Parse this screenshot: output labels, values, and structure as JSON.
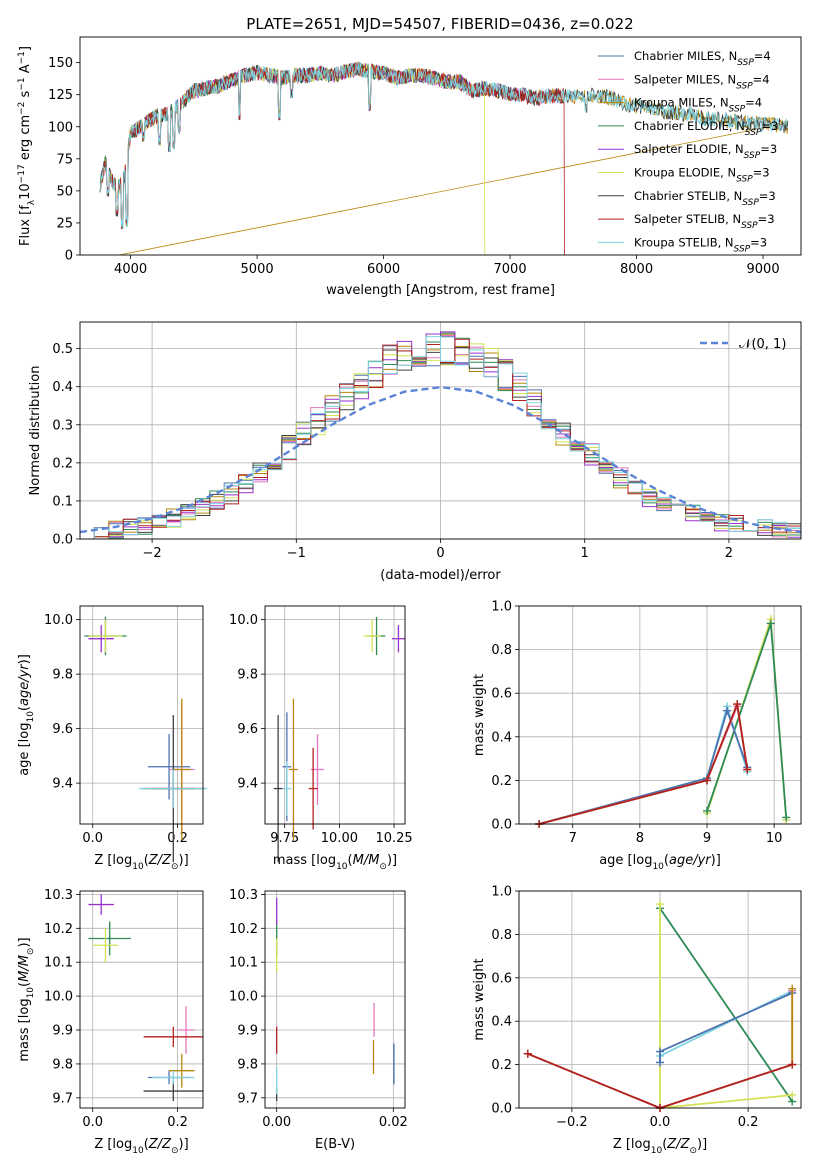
{
  "figure_title": "PLATE=2651, MJD=54507, FIBERID=0436, z=0.022",
  "colors": {
    "Chabrier MILES": "#4c72b0",
    "Salpeter MILES": "#e377c2",
    "Kroupa MILES": "#b8860b",
    "Chabrier ELODIE": "#2e8b57",
    "Salpeter ELODIE": "#9932cc",
    "Kroupa ELODIE": "#d4e157",
    "Chabrier STELIB": "#404040",
    "Salpeter STELIB": "#b22222",
    "Kroupa STELIB": "#7fd3e0",
    "orange": "#dd7733",
    "gauss": "#5b84d6"
  },
  "chart_data": [
    {
      "id": "spectrum",
      "type": "line",
      "title": "PLATE=2651, MJD=54507, FIBERID=0436, z=0.022",
      "xlabel": "wavelength [Angstrom, rest frame]",
      "ylabel": "Flux [f_λ10^-17 erg cm^-2 s^-1 A^-1]",
      "xlim": [
        3600,
        9300
      ],
      "ylim": [
        0,
        170
      ],
      "xticks": [
        4000,
        5000,
        6000,
        7000,
        8000,
        9000
      ],
      "yticks": [
        0,
        25,
        50,
        75,
        100,
        125,
        150
      ],
      "legend_position": "top-right",
      "legend": [
        {
          "label": "Chabrier MILES, N",
          "sub": "SSP",
          "tail": "=4"
        },
        {
          "label": "Salpeter MILES, N",
          "sub": "SSP",
          "tail": "=4"
        },
        {
          "label": "Kroupa MILES, N",
          "sub": "SSP",
          "tail": "=4"
        },
        {
          "label": "Chabrier ELODIE, N",
          "sub": "SSP",
          "tail": "=3"
        },
        {
          "label": "Salpeter ELODIE, N",
          "sub": "SSP",
          "tail": "=3"
        },
        {
          "label": "Kroupa ELODIE, N",
          "sub": "SSP",
          "tail": "=3"
        },
        {
          "label": "Chabrier STELIB, N",
          "sub": "SSP",
          "tail": "=3"
        },
        {
          "label": "Salpeter STELIB, N",
          "sub": "SSP",
          "tail": "=3"
        },
        {
          "label": "Kroupa STELIB, N",
          "sub": "SSP",
          "tail": "=3"
        }
      ],
      "continuum": [
        [
          3760,
          55
        ],
        [
          3800,
          72
        ],
        [
          3850,
          58
        ],
        [
          3900,
          52
        ],
        [
          3950,
          60
        ],
        [
          4000,
          95
        ],
        [
          4100,
          102
        ],
        [
          4200,
          108
        ],
        [
          4300,
          110
        ],
        [
          4400,
          118
        ],
        [
          4500,
          128
        ],
        [
          4600,
          130
        ],
        [
          4700,
          132
        ],
        [
          4800,
          136
        ],
        [
          4900,
          140
        ],
        [
          5000,
          142
        ],
        [
          5100,
          140
        ],
        [
          5200,
          138
        ],
        [
          5300,
          140
        ],
        [
          5400,
          140
        ],
        [
          5500,
          142
        ],
        [
          5600,
          140
        ],
        [
          5700,
          143
        ],
        [
          5800,
          145
        ],
        [
          5900,
          143
        ],
        [
          6000,
          142
        ],
        [
          6100,
          138
        ],
        [
          6200,
          140
        ],
        [
          6300,
          140
        ],
        [
          6400,
          138
        ],
        [
          6500,
          135
        ],
        [
          6600,
          135
        ],
        [
          6700,
          128
        ],
        [
          6800,
          130
        ],
        [
          6900,
          128
        ],
        [
          7000,
          126
        ],
        [
          7100,
          125
        ],
        [
          7200,
          122
        ],
        [
          7300,
          124
        ],
        [
          7400,
          124
        ],
        [
          7500,
          123
        ],
        [
          7600,
          124
        ],
        [
          7700,
          125
        ],
        [
          7800,
          122
        ],
        [
          7900,
          118
        ],
        [
          8000,
          116
        ],
        [
          8100,
          115
        ],
        [
          8200,
          112
        ],
        [
          8300,
          111
        ],
        [
          8400,
          110
        ],
        [
          8500,
          107
        ],
        [
          8600,
          106
        ],
        [
          8700,
          105
        ],
        [
          8800,
          104
        ],
        [
          8900,
          103
        ],
        [
          9000,
          102
        ],
        [
          9100,
          102
        ],
        [
          9200,
          100
        ]
      ],
      "absorption_lines": [
        [
          3820,
          45
        ],
        [
          3890,
          30
        ],
        [
          3933,
          20
        ],
        [
          3968,
          22
        ],
        [
          4102,
          88
        ],
        [
          4227,
          85
        ],
        [
          4305,
          80
        ],
        [
          4340,
          82
        ],
        [
          4384,
          95
        ],
        [
          4861,
          105
        ],
        [
          5175,
          105
        ],
        [
          5270,
          122
        ],
        [
          5890,
          112
        ],
        [
          7600,
          110
        ],
        [
          8200,
          112
        ],
        [
          8540,
          100
        ],
        [
          8660,
          98
        ]
      ],
      "drops": [
        {
          "series": "Kroupa MILES",
          "x": 3910
        },
        {
          "series": "Kroupa ELODIE",
          "x": 6800
        },
        {
          "series": "Salpeter STELIB",
          "x": 7430
        }
      ]
    },
    {
      "id": "residuals",
      "type": "histogram",
      "xlabel": "(data-model)/error",
      "ylabel": "Normed distribution",
      "xlim": [
        -2.5,
        2.5
      ],
      "ylim": [
        0,
        0.57
      ],
      "xticks": [
        -2,
        -1,
        0,
        1,
        2
      ],
      "yticks": [
        0.0,
        0.1,
        0.2,
        0.3,
        0.4,
        0.5
      ],
      "grid": true,
      "legend_position": "top-right",
      "legend_gauss": "𝒩(0, 1)",
      "bin_width": 0.1,
      "gauss_x": [
        -2.5,
        -2.25,
        -2.0,
        -1.75,
        -1.5,
        -1.25,
        -1.0,
        -0.75,
        -0.5,
        -0.25,
        0.0,
        0.25,
        0.5,
        0.75,
        1.0,
        1.25,
        1.5,
        1.75,
        2.0,
        2.25,
        2.5
      ],
      "gauss_y": [
        0.018,
        0.032,
        0.054,
        0.086,
        0.13,
        0.183,
        0.242,
        0.301,
        0.352,
        0.387,
        0.399,
        0.387,
        0.352,
        0.301,
        0.242,
        0.183,
        0.13,
        0.086,
        0.054,
        0.032,
        0.018
      ],
      "hist_profile": [
        0.015,
        0.02,
        0.025,
        0.03,
        0.035,
        0.045,
        0.055,
        0.065,
        0.08,
        0.1,
        0.12,
        0.14,
        0.17,
        0.2,
        0.24,
        0.28,
        0.31,
        0.34,
        0.37,
        0.4,
        0.44,
        0.47,
        0.48,
        0.49,
        0.5,
        0.5,
        0.49,
        0.48,
        0.46,
        0.43,
        0.4,
        0.36,
        0.32,
        0.28,
        0.25,
        0.22,
        0.19,
        0.16,
        0.13,
        0.11,
        0.09,
        0.075,
        0.065,
        0.055,
        0.045,
        0.04,
        0.035,
        0.03,
        0.025,
        0.02
      ]
    },
    {
      "id": "age_vs_Z",
      "type": "scatter",
      "xlabel": "Z [log10(Z/Z⊙)]",
      "ylabel": "age  [log10(age/yr)]",
      "xlim": [
        -0.03,
        0.26
      ],
      "ylim": [
        9.25,
        10.05
      ],
      "xticks": [
        0.0,
        0.2
      ],
      "yticks": [
        9.4,
        9.6,
        9.8,
        10.0
      ],
      "grid": true,
      "points": [
        {
          "series": "Chabrier MILES",
          "x": 0.18,
          "y": 9.46,
          "xe": 0.05,
          "ye": 0.12
        },
        {
          "series": "Salpeter MILES",
          "x": 0.21,
          "y": 9.45,
          "xe": 0.03,
          "ye": 0.24
        },
        {
          "series": "Kroupa MILES",
          "x": 0.21,
          "y": 9.45,
          "xe": 0.02,
          "ye": 0.26
        },
        {
          "series": "Chabrier ELODIE",
          "x": 0.03,
          "y": 9.94,
          "xe": 0.05,
          "ye": 0.07
        },
        {
          "series": "Salpeter ELODIE",
          "x": 0.02,
          "y": 9.93,
          "xe": 0.03,
          "ye": 0.05
        },
        {
          "series": "Kroupa ELODIE",
          "x": 0.03,
          "y": 9.94,
          "xe": 0.04,
          "ye": 0.06
        },
        {
          "series": "Chabrier STELIB",
          "x": 0.19,
          "y": 9.38,
          "xe": 0.05,
          "ye": 0.27
        },
        {
          "series": "Salpeter STELIB",
          "x": 0.19,
          "y": 9.38,
          "xe": 0.07,
          "ye": 0.06
        },
        {
          "series": "Kroupa STELIB",
          "x": 0.19,
          "y": 9.38,
          "xe": 0.08,
          "ye": 0.07
        }
      ]
    },
    {
      "id": "age_vs_mass",
      "type": "scatter",
      "xlabel": "mass [log10(M/M⊙)]",
      "ylabel": "",
      "xlim": [
        9.66,
        10.3
      ],
      "ylim": [
        9.25,
        10.05
      ],
      "xticks": [
        9.75,
        10.0,
        10.25
      ],
      "yticks": [
        9.4,
        9.6,
        9.8,
        10.0
      ],
      "grid": true,
      "points": [
        {
          "series": "Chabrier MILES",
          "x": 9.76,
          "y": 9.46,
          "xe": 0.02,
          "ye": 0.2
        },
        {
          "series": "Salpeter MILES",
          "x": 9.9,
          "y": 9.45,
          "xe": 0.03,
          "ye": 0.13
        },
        {
          "series": "Kroupa MILES",
          "x": 9.79,
          "y": 9.45,
          "xe": 0.02,
          "ye": 0.26
        },
        {
          "series": "Chabrier ELODIE",
          "x": 10.17,
          "y": 9.94,
          "xe": 0.04,
          "ye": 0.07
        },
        {
          "series": "Salpeter ELODIE",
          "x": 10.27,
          "y": 9.93,
          "xe": 0.03,
          "ye": 0.05
        },
        {
          "series": "Kroupa ELODIE",
          "x": 10.15,
          "y": 9.94,
          "xe": 0.04,
          "ye": 0.06
        },
        {
          "series": "Chabrier STELIB",
          "x": 9.72,
          "y": 9.38,
          "xe": 0.02,
          "ye": 0.27
        },
        {
          "series": "Salpeter STELIB",
          "x": 9.88,
          "y": 9.38,
          "xe": 0.02,
          "ye": 0.15
        },
        {
          "series": "Kroupa STELIB",
          "x": 9.76,
          "y": 9.38,
          "xe": 0.02,
          "ye": 0.1
        }
      ]
    },
    {
      "id": "weight_vs_age",
      "type": "line",
      "xlabel": "age  [log10(age/yr)]",
      "ylabel": "mass weight",
      "xlim": [
        6.2,
        10.4
      ],
      "ylim": [
        0.0,
        1.0
      ],
      "xticks": [
        7,
        8,
        9,
        10
      ],
      "yticks": [
        0.0,
        0.2,
        0.4,
        0.6,
        0.8,
        1.0
      ],
      "grid": true,
      "series": [
        {
          "name": "Kroupa ELODIE",
          "x": [
            9.0,
            9.95,
            10.18
          ],
          "y": [
            0.05,
            0.94,
            0.02
          ]
        },
        {
          "name": "Chabrier ELODIE",
          "x": [
            9.0,
            9.95,
            10.18
          ],
          "y": [
            0.06,
            0.92,
            0.03
          ]
        },
        {
          "name": "Kroupa STELIB",
          "x": [
            6.5,
            9.0,
            9.3,
            9.6
          ],
          "y": [
            0.0,
            0.21,
            0.54,
            0.24
          ]
        },
        {
          "name": "Chabrier MILES",
          "x": [
            6.5,
            9.0,
            9.3,
            9.6
          ],
          "y": [
            0.0,
            0.21,
            0.52,
            0.26
          ]
        },
        {
          "name": "Salpeter MILES",
          "x": [
            6.5,
            9.0,
            9.45,
            9.6
          ],
          "y": [
            0.0,
            0.2,
            0.54,
            0.25
          ]
        },
        {
          "name": "Kroupa MILES",
          "x": [
            6.5,
            9.0,
            9.45,
            9.6
          ],
          "y": [
            0.0,
            0.2,
            0.55,
            0.25
          ]
        },
        {
          "name": "Salpeter STELIB",
          "x": [
            6.5,
            9.0,
            9.45,
            9.6
          ],
          "y": [
            0.0,
            0.2,
            0.55,
            0.25
          ]
        }
      ]
    },
    {
      "id": "mass_vs_Z",
      "type": "scatter",
      "xlabel": "Z [log10(Z/Z⊙)]",
      "ylabel": "mass [log10(M/M⊙)]",
      "xlim": [
        -0.03,
        0.26
      ],
      "ylim": [
        9.67,
        10.31
      ],
      "xticks": [
        0.0,
        0.2
      ],
      "yticks": [
        9.7,
        9.8,
        9.9,
        10.0,
        10.1,
        10.2,
        10.3
      ],
      "grid": true,
      "points": [
        {
          "series": "Chabrier MILES",
          "x": 0.18,
          "y": 9.76,
          "xe": 0.05,
          "ye": 0.02
        },
        {
          "series": "Salpeter MILES",
          "x": 0.22,
          "y": 9.9,
          "xe": 0.02,
          "ye": 0.07
        },
        {
          "series": "Kroupa MILES",
          "x": 0.21,
          "y": 9.78,
          "xe": 0.03,
          "ye": 0.05
        },
        {
          "series": "Chabrier ELODIE",
          "x": 0.04,
          "y": 10.17,
          "xe": 0.05,
          "ye": 0.05
        },
        {
          "series": "Salpeter ELODIE",
          "x": 0.02,
          "y": 10.27,
          "xe": 0.03,
          "ye": 0.03
        },
        {
          "series": "Kroupa ELODIE",
          "x": 0.03,
          "y": 10.15,
          "xe": 0.03,
          "ye": 0.05
        },
        {
          "series": "Chabrier STELIB",
          "x": 0.19,
          "y": 9.72,
          "xe": 0.07,
          "ye": 0.03
        },
        {
          "series": "Salpeter STELIB",
          "x": 0.19,
          "y": 9.88,
          "xe": 0.07,
          "ye": 0.03
        },
        {
          "series": "Kroupa STELIB",
          "x": 0.19,
          "y": 9.76,
          "xe": 0.05,
          "ye": 0.02
        }
      ]
    },
    {
      "id": "mass_vs_EBV",
      "type": "scatter",
      "xlabel": "E(B-V)",
      "ylabel": "",
      "xlim": [
        -0.002,
        0.022
      ],
      "ylim": [
        9.67,
        10.31
      ],
      "xticks": [
        0.0,
        0.02
      ],
      "yticks": [
        9.7,
        9.8,
        9.9,
        10.0,
        10.1,
        10.2,
        10.3
      ],
      "grid": true,
      "points": [
        {
          "series": "Chabrier MILES",
          "x": 0.0201,
          "y": 9.8,
          "xe": 0.0,
          "ye": 0.06
        },
        {
          "series": "Salpeter MILES",
          "x": 0.0167,
          "y": 9.93,
          "xe": 0.0,
          "ye": 0.05
        },
        {
          "series": "Kroupa MILES",
          "x": 0.0166,
          "y": 9.82,
          "xe": 0.0,
          "ye": 0.05
        },
        {
          "series": "Chabrier ELODIE",
          "x": 0.0,
          "y": 10.17,
          "xe": 0.0,
          "ye": 0.05
        },
        {
          "series": "Salpeter ELODIE",
          "x": 0.0,
          "y": 10.25,
          "xe": 0.0,
          "ye": 0.04
        },
        {
          "series": "Kroupa ELODIE",
          "x": 0.0,
          "y": 10.12,
          "xe": 0.0,
          "ye": 0.05
        },
        {
          "series": "Chabrier STELIB",
          "x": 0.0,
          "y": 9.71,
          "xe": 0.0,
          "ye": 0.02
        },
        {
          "series": "Salpeter STELIB",
          "x": 0.0,
          "y": 9.87,
          "xe": 0.0,
          "ye": 0.04
        },
        {
          "series": "Kroupa STELIB",
          "x": 0.0,
          "y": 9.75,
          "xe": 0.0,
          "ye": 0.04
        }
      ]
    },
    {
      "id": "weight_vs_Z",
      "type": "line",
      "xlabel": "Z [log10(Z/Z⊙)]",
      "ylabel": "mass weight",
      "xlim": [
        -0.32,
        0.32
      ],
      "ylim": [
        0.0,
        1.0
      ],
      "xticks": [
        -0.2,
        0.0,
        0.2
      ],
      "yticks": [
        0.0,
        0.2,
        0.4,
        0.6,
        0.8,
        1.0
      ],
      "grid": true,
      "series": [
        {
          "name": "Chabrier ELODIE",
          "x": [
            0.0,
            0.3
          ],
          "y": [
            0.92,
            0.03
          ]
        },
        {
          "name": "Kroupa ELODIE",
          "x": [
            0.0,
            0.0,
            0.3
          ],
          "y": [
            0.94,
            0.0,
            0.06
          ]
        },
        {
          "name": "Kroupa STELIB",
          "x": [
            0.0,
            0.0,
            0.3
          ],
          "y": [
            0.21,
            0.24,
            0.54
          ]
        },
        {
          "name": "Chabrier MILES",
          "x": [
            0.0,
            0.0,
            0.3
          ],
          "y": [
            0.21,
            0.26,
            0.53
          ]
        },
        {
          "name": "Salpeter MILES",
          "x": [
            -0.3,
            0.0,
            0.3,
            0.3
          ],
          "y": [
            0.25,
            0.0,
            0.2,
            0.54
          ]
        },
        {
          "name": "Kroupa MILES",
          "x": [
            -0.3,
            0.0,
            0.3,
            0.3
          ],
          "y": [
            0.25,
            0.0,
            0.2,
            0.55
          ]
        },
        {
          "name": "Salpeter STELIB",
          "x": [
            -0.3,
            0.0,
            0.3
          ],
          "y": [
            0.25,
            0.0,
            0.2
          ]
        }
      ]
    }
  ]
}
